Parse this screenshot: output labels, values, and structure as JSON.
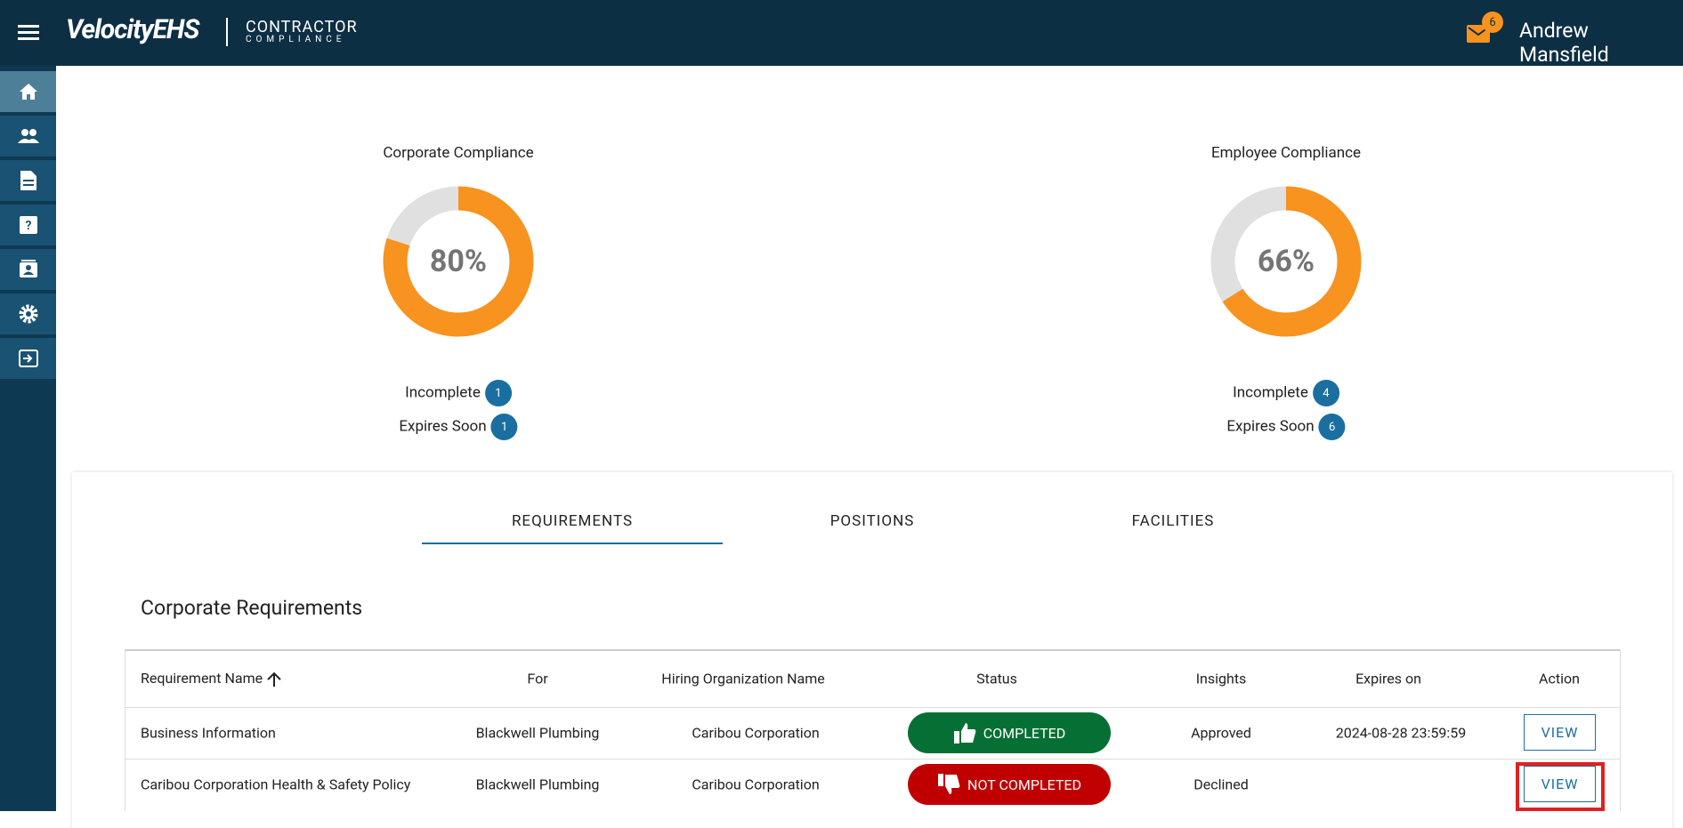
{
  "header": {
    "brand": "VelocityEHS",
    "product_top": "CONTRACTOR",
    "product_bottom": "COMPLIANCE",
    "mail_count": 6,
    "user": "Andrew Mansfield"
  },
  "compliance": [
    {
      "title": "Corporate Compliance",
      "percent": 80,
      "percent_label": "80%",
      "incomplete_label": "Incomplete",
      "incomplete": 1,
      "expires_label": "Expires Soon",
      "expires": 1
    },
    {
      "title": "Employee Compliance",
      "percent": 66,
      "percent_label": "66%",
      "incomplete_label": "Incomplete",
      "incomplete": 4,
      "expires_label": "Expires Soon",
      "expires": 6
    }
  ],
  "tabs": [
    "REQUIREMENTS",
    "POSITIONS",
    "FACILITIES"
  ],
  "section_title": "Corporate Requirements",
  "table": {
    "columns": [
      "Requirement Name",
      "For",
      "Hiring Organization Name",
      "Status",
      "Insights",
      "Expires on",
      "Action"
    ],
    "rows": [
      {
        "name": "Business Information",
        "for": "Blackwell Plumbing",
        "org": "Caribou Corporation",
        "status": "COMPLETED",
        "insights": "Approved",
        "expires": "2024-08-28 23:59:59",
        "action": "VIEW"
      },
      {
        "name": "Caribou Corporation Health & Safety Policy",
        "for": "Blackwell Plumbing",
        "org": "Caribou Corporation",
        "status": "NOT COMPLETED",
        "insights": "Declined",
        "action": "VIEW"
      }
    ]
  }
}
